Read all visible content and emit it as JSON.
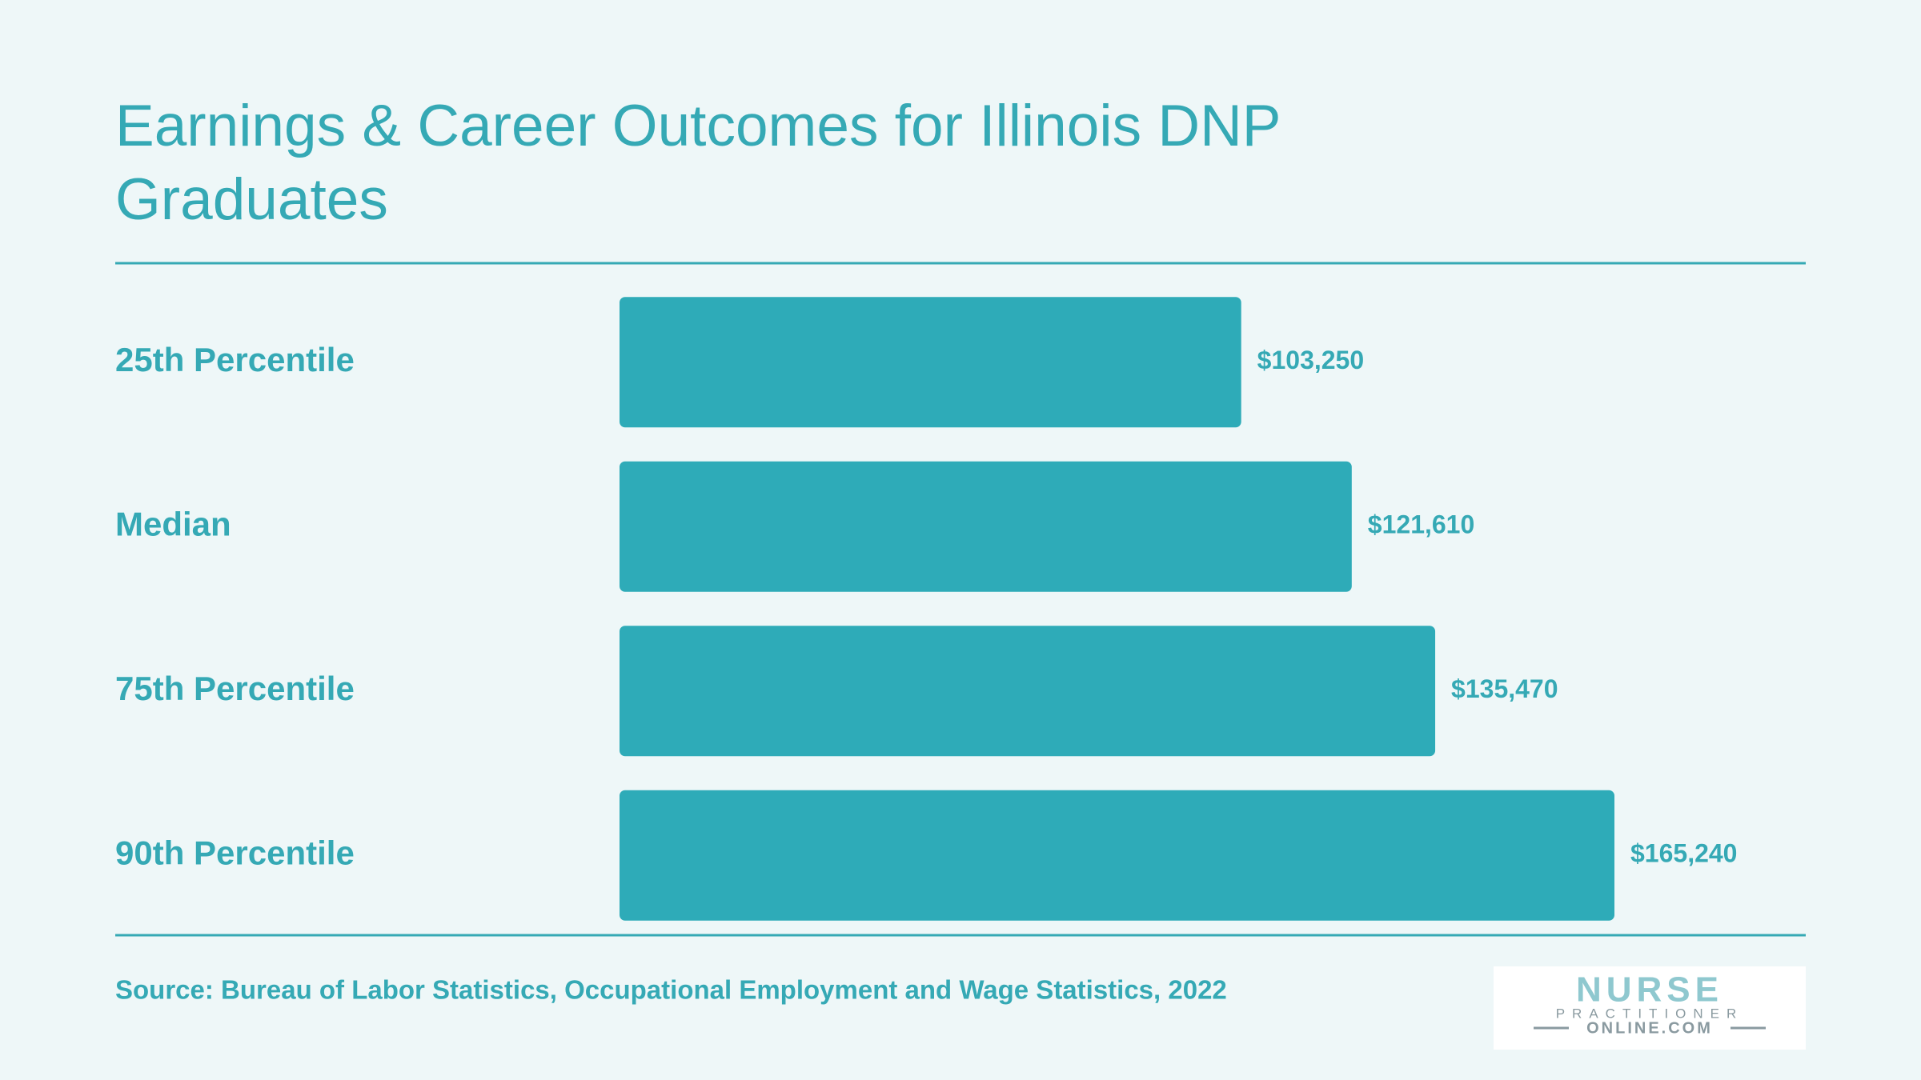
{
  "chart_data": {
    "type": "hbar",
    "title": "Earnings & Career Outcomes for Illinois DNP Graduates",
    "categories": [
      "25th Percentile",
      "Median",
      "75th Percentile",
      "90th Percentile"
    ],
    "values": [
      103250,
      121610,
      135470,
      165240
    ],
    "value_labels": [
      "$103,250",
      "$121,610",
      "$135,470",
      "$165,240"
    ],
    "color": "#2eabb8",
    "source": "Source: Bureau of Labor Statistics, Occupational Employment and Wage Statistics, 2022",
    "logo": {
      "line1": "NURSE",
      "line2": "PRACTITIONER",
      "line3": "ONLINE.COM"
    }
  }
}
